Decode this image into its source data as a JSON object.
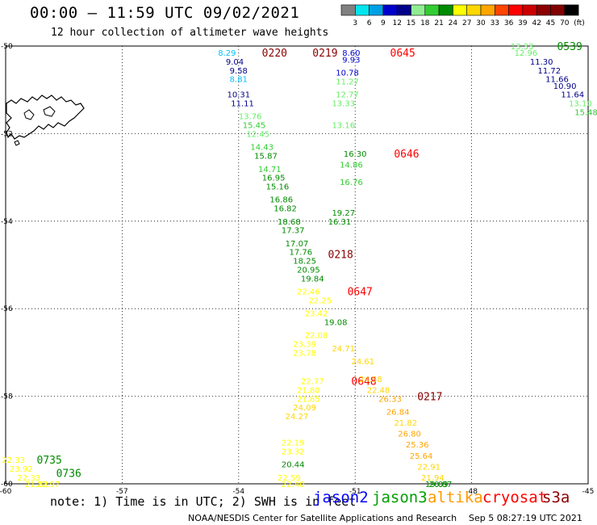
{
  "header": {
    "title": "00:00 – 11:59 UTC 09/02/2021",
    "subtitle": "12 hour collection of altimeter wave heights"
  },
  "scale": {
    "colors": [
      "#808080",
      "#00e5ee",
      "#00a0e6",
      "#0000cd",
      "#00008b",
      "#90ee90",
      "#32cd32",
      "#008b00",
      "#ffff00",
      "#ffd700",
      "#ffa500",
      "#ff4500",
      "#ff0000",
      "#cd0000",
      "#8b0000",
      "#800000",
      "#000000"
    ],
    "labels": [
      "3",
      "6",
      "9",
      "12",
      "15",
      "18",
      "21",
      "24",
      "27",
      "30",
      "33",
      "36",
      "39",
      "42",
      "45",
      "70"
    ],
    "unit": "(ft)"
  },
  "axes": {
    "lon_labels": [
      "-60",
      "-57",
      "-54",
      "-51",
      "-48",
      "-45"
    ],
    "lat_labels": [
      "-50",
      "-52",
      "-54",
      "-56",
      "-58",
      "-60"
    ]
  },
  "footer": {
    "note": "note:  1) Time is in UTC;  2) SWH is in feet",
    "satellites": [
      {
        "name": "jason2",
        "color": "#0000ff"
      },
      {
        "name": "jason3",
        "color": "#00a000"
      },
      {
        "name": "altika",
        "color": "#ff9900"
      },
      {
        "name": "cryosat",
        "color": "#ff0000"
      },
      {
        "name": "s3a",
        "color": "#8b0000"
      }
    ],
    "credit": "NOAA/NESDIS Center for Satellite Applications and Research",
    "generated": "Sep  5 08:27:19 UTC 2021"
  },
  "chart_data": {
    "type": "scatter",
    "x_range": [
      -60,
      -45
    ],
    "y_range": [
      -60,
      -50
    ],
    "tracks": [
      {
        "time": "0220",
        "time_color": "#8b0000",
        "points": [
          {
            "lon": -54.3,
            "lat": -50.15,
            "v": "8.29",
            "c": "#00bfff"
          },
          {
            "lon": -54.1,
            "lat": -50.35,
            "v": "9.04",
            "c": "#00008b"
          },
          {
            "lon": -54.0,
            "lat": -50.55,
            "v": "9.58",
            "c": "#00008b"
          },
          {
            "lon": -54.0,
            "lat": -50.75,
            "v": "8.81",
            "c": "#00bfff"
          }
        ],
        "time_at": {
          "lon": -53.4,
          "lat": -50.15
        }
      },
      {
        "time": "0219",
        "time_color": "#8b0000",
        "points": [
          {
            "lon": -54.0,
            "lat": -51.1,
            "v": "10.31",
            "c": "#00008b"
          },
          {
            "lon": -53.9,
            "lat": -51.3,
            "v": "11.11",
            "c": "#00008b"
          },
          {
            "lon": -53.7,
            "lat": -51.6,
            "v": "13.76",
            "c": "#66ee66"
          },
          {
            "lon": -53.6,
            "lat": -51.8,
            "v": "15.45",
            "c": "#32cd32"
          },
          {
            "lon": -53.5,
            "lat": -52.0,
            "v": "12.45",
            "c": "#66ee66"
          },
          {
            "lon": -53.4,
            "lat": -52.3,
            "v": "14.43",
            "c": "#32cd32"
          },
          {
            "lon": -53.3,
            "lat": -52.5,
            "v": "15.87",
            "c": "#008b00"
          },
          {
            "lon": -53.2,
            "lat": -52.8,
            "v": "14.71",
            "c": "#32cd32"
          },
          {
            "lon": -53.1,
            "lat": -53.0,
            "v": "16.95",
            "c": "#008b00"
          },
          {
            "lon": -53.0,
            "lat": -53.2,
            "v": "15.16",
            "c": "#008b00"
          },
          {
            "lon": -52.9,
            "lat": -53.5,
            "v": "16.86",
            "c": "#008b00"
          },
          {
            "lon": -52.8,
            "lat": -53.7,
            "v": "16.82",
            "c": "#008b00"
          },
          {
            "lon": -52.7,
            "lat": -54.0,
            "v": "18.68",
            "c": "#008b00"
          },
          {
            "lon": -52.6,
            "lat": -54.2,
            "v": "17.37",
            "c": "#008b00"
          },
          {
            "lon": -52.5,
            "lat": -54.5,
            "v": "17.07",
            "c": "#008b00"
          },
          {
            "lon": -52.4,
            "lat": -54.7,
            "v": "17.76",
            "c": "#008b00"
          },
          {
            "lon": -52.3,
            "lat": -54.9,
            "v": "18.25",
            "c": "#008b00"
          },
          {
            "lon": -52.2,
            "lat": -55.1,
            "v": "20.95",
            "c": "#008b00"
          },
          {
            "lon": -52.1,
            "lat": -55.3,
            "v": "19.84",
            "c": "#008b00"
          }
        ],
        "time_at": {
          "lon": -52.1,
          "lat": -50.15
        }
      },
      {
        "time": "0218",
        "time_color": "#8b0000",
        "points": [],
        "time_at": {
          "lon": -51.7,
          "lat": -54.75
        }
      },
      {
        "time": "0217",
        "time_color": "#8b0000",
        "points": [],
        "time_at": {
          "lon": -49.4,
          "lat": -58.0
        }
      },
      {
        "time": "0645",
        "time_color": "#ff0000",
        "points": [
          {
            "lon": -51.1,
            "lat": -50.15,
            "v": "8.60",
            "c": "#0000cd"
          },
          {
            "lon": -51.1,
            "lat": -50.3,
            "v": "9.93",
            "c": "#0000cd"
          },
          {
            "lon": -51.2,
            "lat": -50.6,
            "v": "10.78",
            "c": "#0000cd"
          },
          {
            "lon": -51.2,
            "lat": -50.8,
            "v": "11.27",
            "c": "#66ee66"
          },
          {
            "lon": -51.2,
            "lat": -51.1,
            "v": "12.77",
            "c": "#66ee66"
          },
          {
            "lon": -51.3,
            "lat": -51.3,
            "v": "13.33",
            "c": "#66ee66"
          },
          {
            "lon": -51.3,
            "lat": -51.8,
            "v": "13.16",
            "c": "#66ee66"
          }
        ]
      },
      {
        "time": "0646",
        "time_color": "#ff0000",
        "points": [
          {
            "lon": -51.0,
            "lat": -52.45,
            "v": "16.30",
            "c": "#008b00"
          },
          {
            "lon": -51.1,
            "lat": -52.7,
            "v": "14.86",
            "c": "#32cd32"
          },
          {
            "lon": -51.1,
            "lat": -53.1,
            "v": "16.76",
            "c": "#32cd32"
          },
          {
            "lon": -51.3,
            "lat": -53.8,
            "v": "19.27",
            "c": "#008b00"
          },
          {
            "lon": -51.4,
            "lat": -54.0,
            "v": "16.31",
            "c": "#008b00"
          }
        ]
      },
      {
        "time": "0647",
        "time_color": "#ff0000",
        "points": [
          {
            "lon": -52.2,
            "lat": -55.6,
            "v": "22.46",
            "c": "#ffff00"
          },
          {
            "lon": -51.9,
            "lat": -55.8,
            "v": "22.25",
            "c": "#ffff00"
          },
          {
            "lon": -52.0,
            "lat": -56.1,
            "v": "23.42",
            "c": "#ffff00"
          },
          {
            "lon": -51.5,
            "lat": -56.3,
            "v": "19.08",
            "c": "#008b00"
          },
          {
            "lon": -52.0,
            "lat": -56.6,
            "v": "22.08",
            "c": "#ffff00"
          },
          {
            "lon": -52.3,
            "lat": -56.8,
            "v": "23.39",
            "c": "#ffff00"
          },
          {
            "lon": -52.3,
            "lat": -57.0,
            "v": "23.78",
            "c": "#ffff00"
          }
        ]
      },
      {
        "time": "0648",
        "time_color": "#ff0000",
        "points": [
          {
            "lon": -52.1,
            "lat": -57.65,
            "v": "22.77",
            "c": "#ffff00"
          },
          {
            "lon": -52.2,
            "lat": -57.85,
            "v": "21.80",
            "c": "#ffff00"
          },
          {
            "lon": -52.2,
            "lat": -58.05,
            "v": "21.85",
            "c": "#ffff00"
          },
          {
            "lon": -52.3,
            "lat": -58.25,
            "v": "24.09",
            "c": "#ffd700"
          },
          {
            "lon": -52.5,
            "lat": -58.45,
            "v": "24.27",
            "c": "#ffd700"
          },
          {
            "lon": -52.6,
            "lat": -59.05,
            "v": "22.19",
            "c": "#ffff00"
          },
          {
            "lon": -52.6,
            "lat": -59.25,
            "v": "23.32",
            "c": "#ffff00"
          },
          {
            "lon": -52.6,
            "lat": -59.55,
            "v": "20.44",
            "c": "#008b00"
          },
          {
            "lon": -52.7,
            "lat": -59.85,
            "v": "22.59",
            "c": "#ffff00"
          },
          {
            "lon": -52.6,
            "lat": -60.0,
            "v": "22.40",
            "c": "#ffff00"
          }
        ]
      },
      {
        "time": "altika-line",
        "time_color": "",
        "points": [
          {
            "lon": -51.3,
            "lat": -56.9,
            "v": "24.71",
            "c": "#ffd700"
          },
          {
            "lon": -50.8,
            "lat": -57.2,
            "v": "24.61",
            "c": "#ffd700"
          },
          {
            "lon": -50.6,
            "lat": -57.6,
            "v": "24.58",
            "c": "#ffd700"
          },
          {
            "lon": -50.4,
            "lat": -57.85,
            "v": "22.48",
            "c": "#ffd700"
          },
          {
            "lon": -50.1,
            "lat": -58.05,
            "v": "26.33",
            "c": "#ffa500"
          },
          {
            "lon": -49.9,
            "lat": -58.35,
            "v": "26.84",
            "c": "#ffa500"
          },
          {
            "lon": -49.7,
            "lat": -58.6,
            "v": "21.82",
            "c": "#ffd700"
          },
          {
            "lon": -49.6,
            "lat": -58.85,
            "v": "26.80",
            "c": "#ffa500"
          },
          {
            "lon": -49.4,
            "lat": -59.1,
            "v": "25.36",
            "c": "#ffa500"
          },
          {
            "lon": -49.3,
            "lat": -59.35,
            "v": "25.64",
            "c": "#ffa500"
          },
          {
            "lon": -49.1,
            "lat": -59.6,
            "v": "22.91",
            "c": "#ffd700"
          },
          {
            "lon": -49.0,
            "lat": -59.85,
            "v": "21.94",
            "c": "#ffd700"
          },
          {
            "lon": -48.9,
            "lat": -60.0,
            "v": "19.09",
            "c": "#008b00"
          },
          {
            "lon": -48.8,
            "lat": -60.0,
            "v": "20.87",
            "c": "#008b00"
          }
        ]
      },
      {
        "time": "0539",
        "time_color": "#008b00",
        "points": [
          {
            "lon": -46.7,
            "lat": -50.0,
            "v": "13.33",
            "c": "#66ee66"
          },
          {
            "lon": -46.6,
            "lat": -50.15,
            "v": "12.96",
            "c": "#66ee66"
          },
          {
            "lon": -46.2,
            "lat": -50.35,
            "v": "11.30",
            "c": "#00008b"
          },
          {
            "lon": -46.0,
            "lat": -50.55,
            "v": "11.72",
            "c": "#00008b"
          },
          {
            "lon": -45.8,
            "lat": -50.75,
            "v": "11.66",
            "c": "#00008b"
          },
          {
            "lon": -45.6,
            "lat": -50.9,
            "v": "10.90",
            "c": "#00008b"
          },
          {
            "lon": -45.4,
            "lat": -51.1,
            "v": "11.64",
            "c": "#00008b"
          },
          {
            "lon": -45.2,
            "lat": -51.3,
            "v": "13.10",
            "c": "#66ee66"
          },
          {
            "lon": -45.05,
            "lat": -51.5,
            "v": "15.48",
            "c": "#32cd32"
          }
        ],
        "time_at": {
          "lon": -45.8,
          "lat": -50.0
        }
      },
      {
        "time": "0735",
        "time_color": "#008b00",
        "points": [
          {
            "lon": -59.8,
            "lat": -59.45,
            "v": "22.33",
            "c": "#ffff00"
          },
          {
            "lon": -59.6,
            "lat": -59.65,
            "v": "23.92",
            "c": "#ffff00"
          },
          {
            "lon": -59.4,
            "lat": -59.85,
            "v": "22.33",
            "c": "#ffff00"
          },
          {
            "lon": -59.2,
            "lat": -60.0,
            "v": "21.83",
            "c": "#ffff00"
          },
          {
            "lon": -58.9,
            "lat": -60.0,
            "v": "22.97",
            "c": "#ffff00"
          }
        ],
        "time_at": {
          "lon": -59.2,
          "lat": -59.45
        }
      },
      {
        "time": "0736",
        "time_color": "#008b00",
        "points": [],
        "time_at": {
          "lon": -58.7,
          "lat": -59.75
        }
      }
    ]
  }
}
